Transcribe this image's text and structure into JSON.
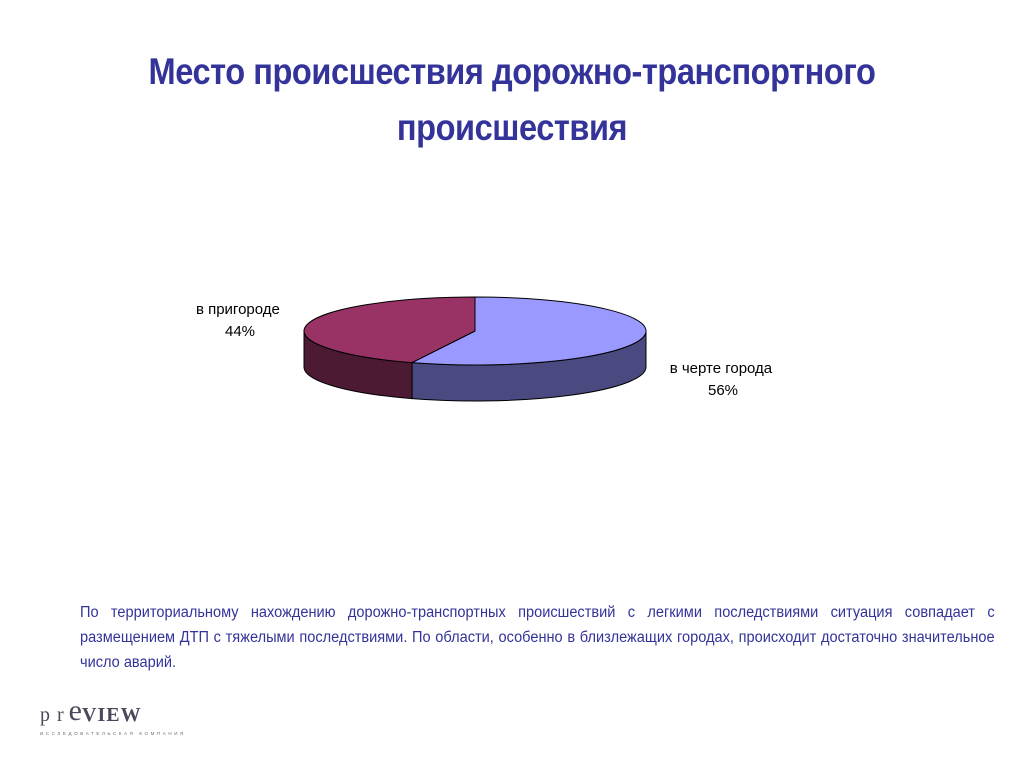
{
  "slide": {
    "title": "Место происшествия дорожно-транспортного происшествия",
    "description": "По территориальному  нахождению  дорожно-транспортных происшествий с легкими последствиями ситуация совпадает с размещением ДТП с тяжелыми последствиями. По области, особенно в близлежащих городах, происходит достаточно значительное число аварий."
  },
  "logo": {
    "part1": "pr",
    "part2": "e",
    "part3": "VIEW",
    "tagline": "ИССЛЕДОВАТЕЛЬСКАЯ КОМПАНИЯ"
  },
  "chart_data": {
    "type": "pie",
    "title": "",
    "style": "3d",
    "legend": "none",
    "slices": [
      {
        "label": "в черте города",
        "value": 56,
        "value_label": "56%",
        "color": "#9999FF",
        "side_color": "#4A4A80"
      },
      {
        "label": "в пригороде",
        "value": 44,
        "value_label": "44%",
        "color": "#993366",
        "side_color": "#4D1A33"
      }
    ]
  }
}
